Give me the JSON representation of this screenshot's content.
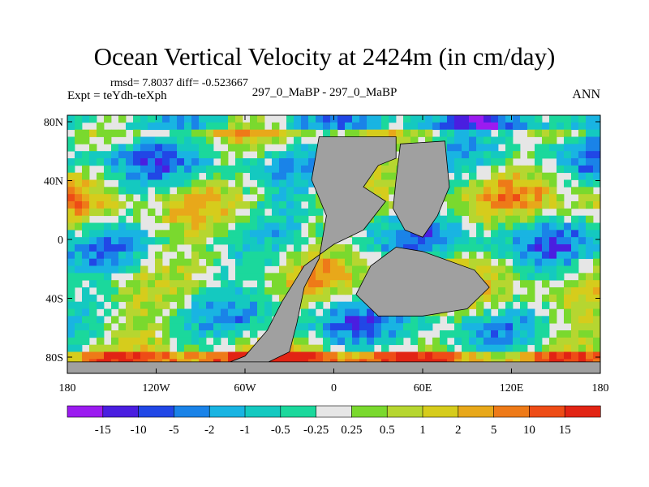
{
  "chart_data": {
    "type": "heatmap",
    "title": "Ocean Vertical Velocity at 2424m (in cm/day)",
    "stats_text": "rmsd= 7.8037 diff= -0.523667",
    "left_label": "Expt = teYdh-teXph",
    "center_label": "297_0_MaBP - 297_0_MaBP",
    "right_label": "ANN",
    "x_ticks": [
      "180",
      "120W",
      "60W",
      "0",
      "60E",
      "120E",
      "180"
    ],
    "y_ticks": [
      "80N",
      "40N",
      "0",
      "40S",
      "80S"
    ],
    "xlim": [
      -180,
      180
    ],
    "ylim": [
      -90,
      90
    ],
    "land_color": "#a0a0a0",
    "colorbar": {
      "labels": [
        "-15",
        "-10",
        "-5",
        "-2",
        "-1",
        "-0.5",
        "-0.25",
        "0.25",
        "0.5",
        "1",
        "2",
        "5",
        "10",
        "15"
      ],
      "colors": [
        "#9b1bf0",
        "#4a1ee0",
        "#2147e6",
        "#1a83e8",
        "#19b4e2",
        "#14c9c0",
        "#1bd89c",
        "#e6e6e6",
        "#7ad92e",
        "#b6d630",
        "#d6cc1c",
        "#e8a81a",
        "#ee7a18",
        "#ee4c16",
        "#e22414"
      ]
    }
  }
}
